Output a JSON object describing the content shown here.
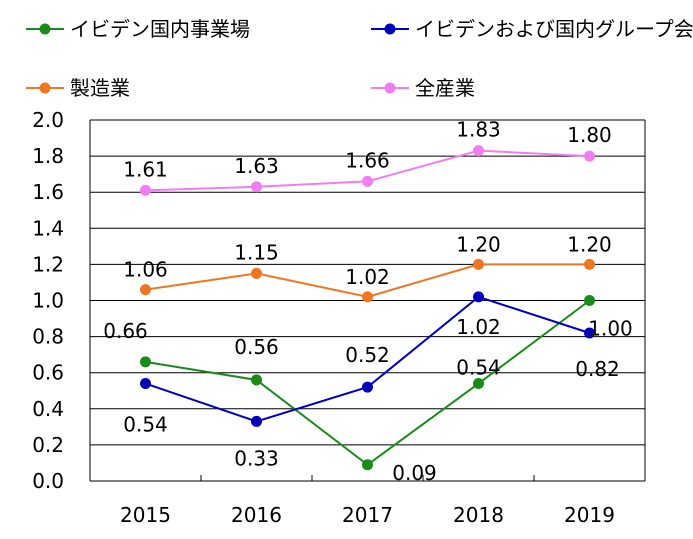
{
  "chart_data": {
    "type": "line",
    "categories": [
      "2015",
      "2016",
      "2017",
      "2018",
      "2019"
    ],
    "ylim": [
      0.0,
      2.0
    ],
    "yticks": [
      "0.0",
      "0.2",
      "0.4",
      "0.6",
      "0.8",
      "1.0",
      "1.2",
      "1.4",
      "1.6",
      "1.8",
      "2.0"
    ],
    "grid": "horizontal",
    "legend_position": "top",
    "series": [
      {
        "name": "イビデン国内事業場",
        "color": "#1a8a1a",
        "values": [
          0.66,
          0.56,
          0.09,
          0.54,
          1.0
        ],
        "labels": [
          "0.66",
          "0.56",
          "0.09",
          "0.54",
          "1.00"
        ]
      },
      {
        "name": "イビデンおよび国内グループ会社",
        "color": "#0000bb",
        "values": [
          0.54,
          0.33,
          0.52,
          1.02,
          0.82
        ],
        "labels": [
          "0.54",
          "0.33",
          "0.52",
          "1.02",
          "0.82"
        ]
      },
      {
        "name": "製造業",
        "color": "#ee7722",
        "values": [
          1.06,
          1.15,
          1.02,
          1.2,
          1.2
        ],
        "labels": [
          "1.06",
          "1.15",
          "1.02",
          "1.20",
          "1.20"
        ]
      },
      {
        "name": "全産業",
        "color": "#f07ef0",
        "values": [
          1.61,
          1.63,
          1.66,
          1.83,
          1.8
        ],
        "labels": [
          "1.61",
          "1.63",
          "1.66",
          "1.83",
          "1.80"
        ]
      }
    ]
  }
}
